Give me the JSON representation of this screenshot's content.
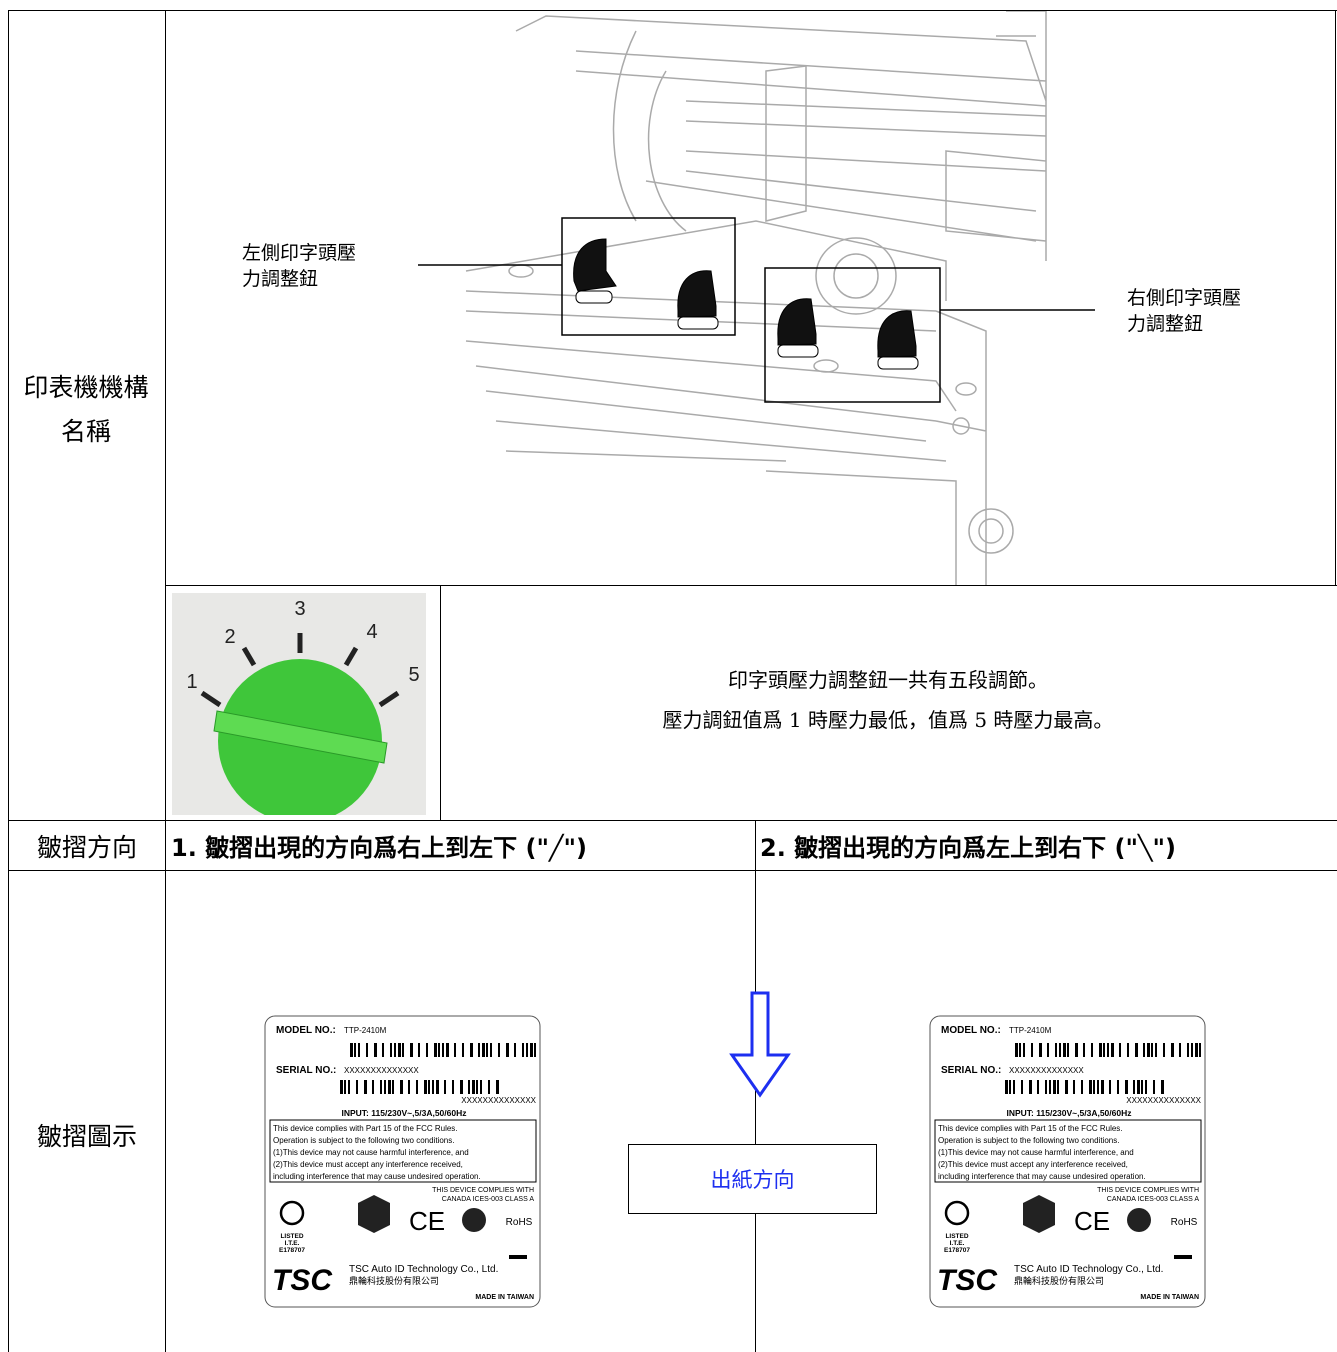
{
  "mechanism": {
    "header": "印表機機構名稱",
    "left_callout": "左側印字頭壓力調整鈕",
    "right_callout": "右側印字頭壓力調整鈕",
    "knob_marks": [
      "1",
      "2",
      "3",
      "4",
      "5"
    ],
    "knob_description": [
      "印字頭壓力調整鈕一共有五段調節。",
      "壓力調鈕值爲 1 時壓力最低，值爲 5 時壓力最高。"
    ]
  },
  "direction": {
    "header": "皺摺方向",
    "case1": "1. 皺摺出現的方向爲右上到左下 (\"╱\")",
    "case2": "2. 皺摺出現的方向爲左上到右下 (\"╲\")"
  },
  "illustration": {
    "header": "皺摺圖示",
    "feed_direction": "出紙方向"
  },
  "label": {
    "model": "MODEL NO.:",
    "model_value": "TTP-2410M",
    "serial": "SERIAL NO.:",
    "serial_value": "XXXXXXXXXXXXXX",
    "serial_repeat": "XXXXXXXXXXXXXX",
    "input": "INPUT: 115/230V~,5/3A,50/60Hz",
    "fcc": [
      "This device complies with Part 15 of the FCC Rules.",
      "Operation is subject to the following two conditions.",
      "(1)This device may not cause harmful interference, and",
      "(2)This device must accept any interference received,",
      "including interference that may cause undesired operation."
    ],
    "canada": [
      "THIS DEVICE COMPLIES WITH",
      "CANADA ICES-003 CLASS A"
    ],
    "ul_listed": [
      "LISTED",
      "I.T.E.",
      "E178707"
    ],
    "rohs": "RoHS",
    "brand": "TSC",
    "company": "TSC Auto ID Technology Co., Ltd.",
    "company_cn": "鼎輪科技股份有限公司",
    "made_in": "MADE IN TAIWAN"
  }
}
